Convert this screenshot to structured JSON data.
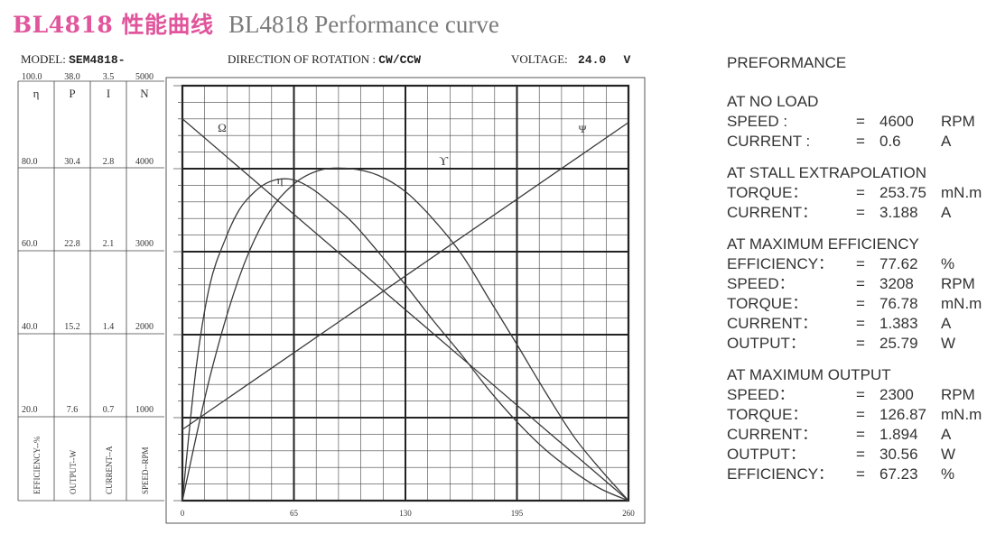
{
  "header": {
    "title_cn": "BL4818 性能曲线",
    "title_en": "BL4818 Performance curve"
  },
  "chart_header": {
    "model_label": "MODEL:",
    "model_value": "SEM4818-",
    "rotation_label": "DIRECTION OF ROTATION :",
    "rotation_value": "CW/CCW",
    "voltage_label": "VOLTAGE:",
    "voltage_value": "24.0",
    "voltage_unit": "V"
  },
  "chart_data": {
    "type": "line",
    "x": {
      "ticks": [
        0,
        65,
        130,
        195,
        260
      ],
      "range": [
        0,
        260
      ]
    },
    "y_scales": [
      {
        "label": "EFFICIENCY--%",
        "header": "η",
        "ticks": [
          "100.0",
          "80.0",
          "60.0",
          "40.0",
          "20.0"
        ],
        "range": [
          0,
          100
        ]
      },
      {
        "label": "OUTPUT--W",
        "header": "P",
        "ticks": [
          "38.0",
          "30.4",
          "22.8",
          "15.2",
          "7.6"
        ],
        "range": [
          0,
          38
        ]
      },
      {
        "label": "CURRENT--A",
        "header": "I",
        "ticks": [
          "3.5",
          "2.8",
          "2.1",
          "1.4",
          "0.7"
        ],
        "range": [
          0,
          3.5
        ]
      },
      {
        "label": "SPEED--RPM",
        "header": "N",
        "ticks": [
          "5000",
          "4000",
          "3000",
          "2000",
          "1000"
        ],
        "range": [
          0,
          5000
        ]
      }
    ],
    "curve_labels": {
      "speed": "Ω",
      "efficiency": "η",
      "output": "ϒ",
      "current": "Ψ"
    },
    "series": [
      {
        "key": "speed",
        "scale": "SPEED--RPM",
        "points": [
          [
            0,
            4600
          ],
          [
            260,
            0
          ]
        ]
      },
      {
        "key": "current",
        "scale": "CURRENT--A",
        "points": [
          [
            0,
            0.6
          ],
          [
            260,
            3.19
          ]
        ]
      },
      {
        "key": "output",
        "scale": "OUTPUT--W",
        "points": [
          [
            0,
            0
          ],
          [
            16,
            11.3
          ],
          [
            33,
            20.4
          ],
          [
            49,
            26.0
          ],
          [
            65,
            29.0
          ],
          [
            81,
            30.3
          ],
          [
            98,
            30.4
          ],
          [
            114,
            29.8
          ],
          [
            130,
            28.3
          ],
          [
            146,
            25.8
          ],
          [
            163,
            22.5
          ],
          [
            179,
            18.4
          ],
          [
            195,
            14.3
          ],
          [
            211,
            10.1
          ],
          [
            228,
            5.9
          ],
          [
            244,
            2.8
          ],
          [
            260,
            0
          ]
        ]
      },
      {
        "key": "efficiency",
        "scale": "EFFICIENCY--%",
        "points": [
          [
            0,
            0
          ],
          [
            8,
            32
          ],
          [
            16,
            52
          ],
          [
            25,
            63
          ],
          [
            33,
            70
          ],
          [
            41,
            74
          ],
          [
            49,
            76.5
          ],
          [
            57,
            77.5
          ],
          [
            65,
            77.3
          ],
          [
            73,
            75.8
          ],
          [
            81,
            73.5
          ],
          [
            98,
            67.5
          ],
          [
            114,
            60
          ],
          [
            130,
            52
          ],
          [
            146,
            43.5
          ],
          [
            163,
            35
          ],
          [
            179,
            26.5
          ],
          [
            195,
            19
          ],
          [
            211,
            12.5
          ],
          [
            228,
            7
          ],
          [
            244,
            2.8
          ],
          [
            260,
            0
          ]
        ]
      }
    ]
  },
  "performance": {
    "heading": "PREFORMANCE",
    "sections": [
      {
        "title": "AT NO LOAD",
        "rows": [
          {
            "label": "SPEED :",
            "eq": "=",
            "value": "4600",
            "unit": "RPM"
          },
          {
            "label": "CURRENT :",
            "eq": "=",
            "value": "0.6",
            "unit": "A"
          }
        ]
      },
      {
        "title": "AT STALL EXTRAPOLATION",
        "rows": [
          {
            "label": "TORQUE：",
            "eq": "=",
            "value": "253.75",
            "unit": "mN.m"
          },
          {
            "label": "CURRENT：",
            "eq": "=",
            "value": "3.188",
            "unit": "A"
          }
        ]
      },
      {
        "title": "AT MAXIMUM EFFICIENCY",
        "rows": [
          {
            "label": "EFFICIENCY：",
            "eq": "=",
            "value": "77.62",
            "unit": "%"
          },
          {
            "label": "SPEED：",
            "eq": "=",
            "value": "3208",
            "unit": "RPM"
          },
          {
            "label": "TORQUE：",
            "eq": "=",
            "value": "76.78",
            "unit": "mN.m"
          },
          {
            "label": "CURRENT：",
            "eq": "=",
            "value": "1.383",
            "unit": "A"
          },
          {
            "label": "OUTPUT：",
            "eq": "=",
            "value": "25.79",
            "unit": "W"
          }
        ]
      },
      {
        "title": "AT MAXIMUM OUTPUT",
        "rows": [
          {
            "label": "SPEED：",
            "eq": "=",
            "value": "2300",
            "unit": "RPM"
          },
          {
            "label": "TORQUE：",
            "eq": "=",
            "value": "126.87",
            "unit": "mN.m"
          },
          {
            "label": "CURRENT：",
            "eq": "=",
            "value": "1.894",
            "unit": "A"
          },
          {
            "label": "OUTPUT：",
            "eq": "=",
            "value": "30.56",
            "unit": "W"
          },
          {
            "label": "EFFICIENCY：",
            "eq": "=",
            "value": "67.23",
            "unit": "%"
          }
        ]
      }
    ]
  }
}
